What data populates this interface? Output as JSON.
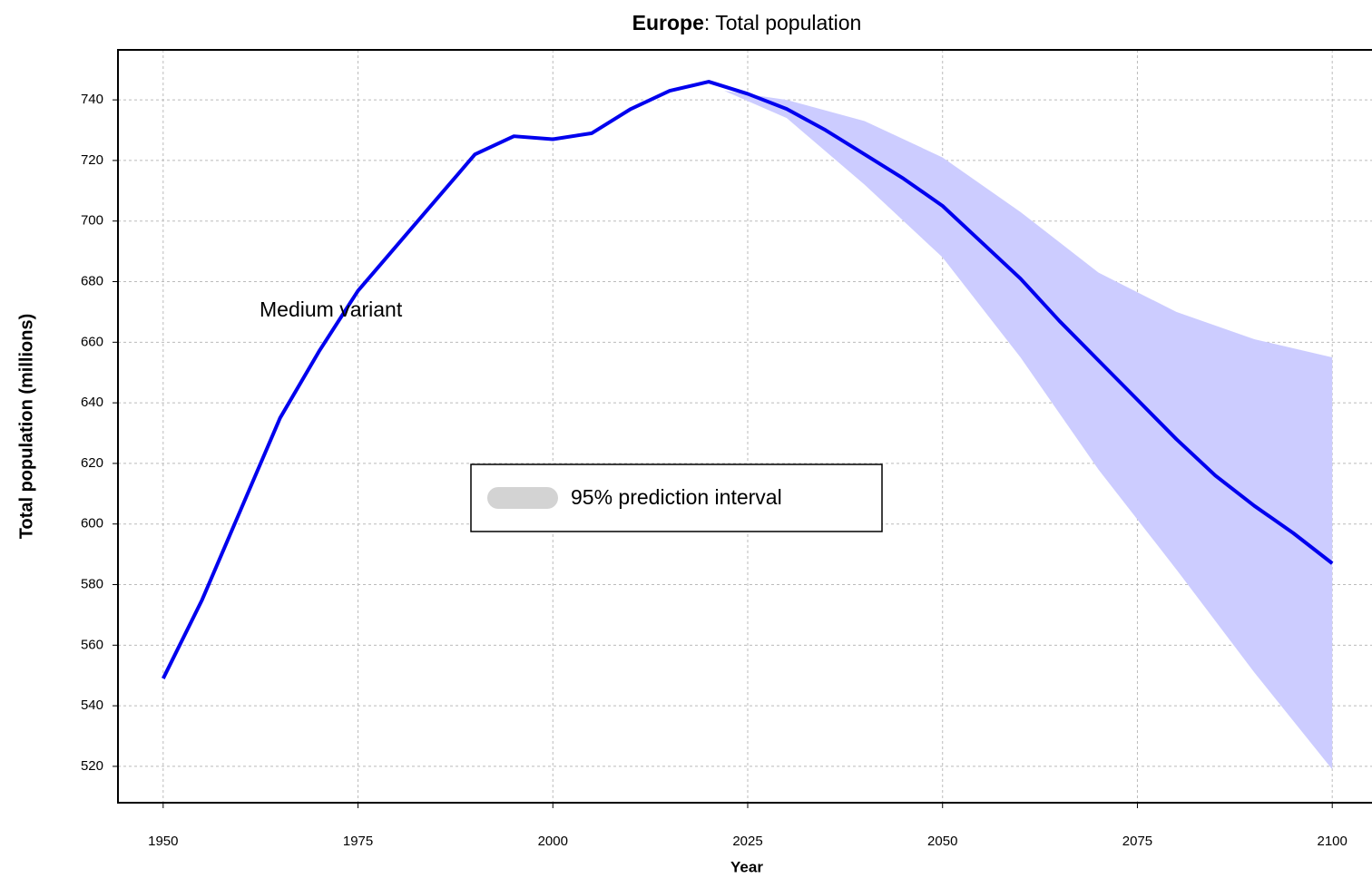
{
  "chart_data": {
    "type": "line",
    "title_bold": "Europe",
    "title_rest": ": Total population",
    "x_label": "Year",
    "y_label": "Total population (millions)",
    "xlim": [
      1944.2,
      2105.1
    ],
    "ylim": [
      508,
      756.5
    ],
    "xticks": [
      1950,
      1975,
      2000,
      2025,
      2050,
      2075,
      2100
    ],
    "yticks": [
      520,
      540,
      560,
      580,
      600,
      620,
      640,
      660,
      680,
      700,
      720,
      740
    ],
    "grid": true,
    "series": [
      {
        "name": "Medium variant",
        "color": "#0000ee",
        "x": [
          1950,
          1955,
          1960,
          1965,
          1970,
          1975,
          1980,
          1985,
          1990,
          1995,
          2000,
          2005,
          2010,
          2015,
          2020,
          2025,
          2030,
          2035,
          2040,
          2045,
          2050,
          2055,
          2060,
          2065,
          2070,
          2075,
          2080,
          2085,
          2090,
          2095,
          2100
        ],
        "values": [
          549,
          575,
          605,
          635,
          657,
          677,
          692,
          707,
          722,
          728,
          727,
          729,
          737,
          743,
          746,
          742,
          737,
          730,
          722,
          714,
          705,
          693,
          681,
          667,
          654,
          641,
          628,
          616,
          606,
          597,
          587
        ]
      }
    ],
    "band": {
      "name": "95% prediction interval",
      "color": "#ccccff",
      "legend_color": "#d3d3d3",
      "x": [
        2022,
        2030,
        2040,
        2050,
        2060,
        2070,
        2080,
        2090,
        2100
      ],
      "upper": [
        743,
        740,
        733,
        721,
        703,
        683,
        670,
        661,
        655
      ],
      "lower": [
        743,
        734,
        712,
        688,
        655,
        618,
        585,
        551,
        519
      ]
    }
  }
}
